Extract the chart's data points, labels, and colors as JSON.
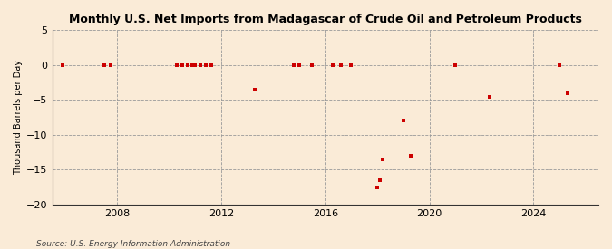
{
  "title": "Monthly U.S. Net Imports from Madagascar of Crude Oil and Petroleum Products",
  "ylabel": "Thousand Barrels per Day",
  "source": "Source: U.S. Energy Information Administration",
  "background_color": "#faebd7",
  "plot_bg_color": "#faebd7",
  "point_color": "#cc0000",
  "ylim": [
    -20,
    5
  ],
  "yticks": [
    -20,
    -15,
    -10,
    -5,
    0,
    5
  ],
  "xlim": [
    2005.5,
    2026.5
  ],
  "xticks": [
    2008,
    2012,
    2016,
    2020,
    2024
  ],
  "data_points": [
    [
      2005.9,
      0
    ],
    [
      2007.5,
      0
    ],
    [
      2007.75,
      0
    ],
    [
      2010.3,
      0
    ],
    [
      2010.5,
      0
    ],
    [
      2010.7,
      0
    ],
    [
      2010.9,
      0
    ],
    [
      2011.0,
      0
    ],
    [
      2011.2,
      0
    ],
    [
      2011.4,
      0
    ],
    [
      2011.6,
      0
    ],
    [
      2013.3,
      -3.5
    ],
    [
      2014.8,
      0
    ],
    [
      2015.0,
      0
    ],
    [
      2015.5,
      0
    ],
    [
      2016.3,
      0
    ],
    [
      2016.6,
      0
    ],
    [
      2017.0,
      0
    ],
    [
      2018.0,
      -17.5
    ],
    [
      2018.1,
      -16.5
    ],
    [
      2018.2,
      -13.5
    ],
    [
      2019.0,
      -8.0
    ],
    [
      2019.3,
      -13.0
    ],
    [
      2021.0,
      0
    ],
    [
      2022.3,
      -4.5
    ],
    [
      2025.0,
      0
    ],
    [
      2025.3,
      -4.0
    ]
  ]
}
